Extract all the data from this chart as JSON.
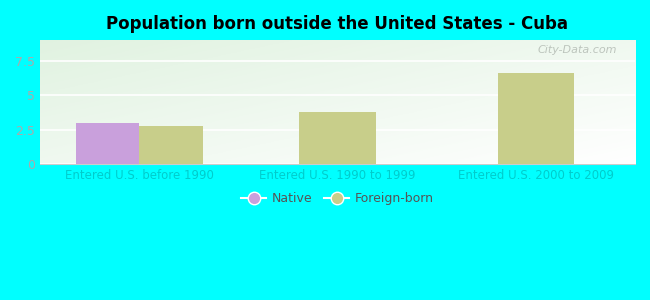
{
  "title": "Population born outside the United States - Cuba",
  "background_color": "#00FFFF",
  "categories": [
    "Entered U.S. before 1990",
    "Entered U.S. 1990 to 1999",
    "Entered U.S. 2000 to 2009"
  ],
  "native_values": [
    3.0,
    null,
    null
  ],
  "foreign_values": [
    2.75,
    3.8,
    6.6
  ],
  "native_color": "#c9a0dc",
  "foreign_color": "#c8ce8a",
  "ylim": [
    0,
    9
  ],
  "yticks": [
    0,
    2.5,
    5,
    7.5
  ],
  "bar_width": 0.32,
  "legend_labels": [
    "Native",
    "Foreign-born"
  ],
  "xlabel_color": "#00CCCC",
  "tick_color": "#aaaaaa",
  "watermark": "City-Data.com",
  "plot_bg_left": "#c8e6c0",
  "plot_bg_right": "#f0fff0"
}
